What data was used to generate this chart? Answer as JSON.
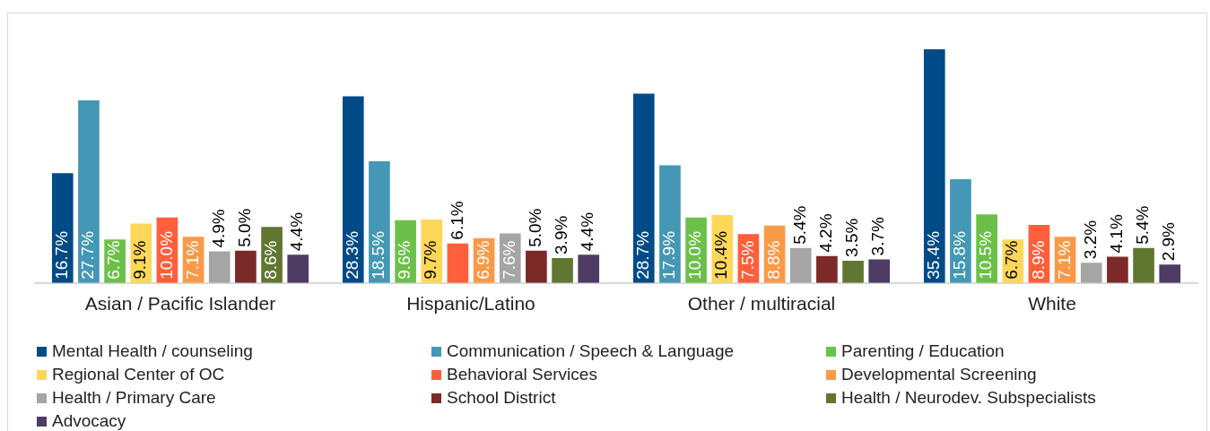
{
  "chart_data": {
    "type": "bar",
    "categories": [
      "Asian / Pacific Islander",
      "Hispanic/Latino",
      "Other / multiracial",
      "White"
    ],
    "series": [
      {
        "name": "Mental Health / counseling",
        "color": "#004b87",
        "values": [
          16.7,
          28.3,
          28.7,
          35.4
        ],
        "value_labels": [
          "16.7%",
          "28.3%",
          "28.7%",
          "35.4%"
        ]
      },
      {
        "name": "Communication / Speech & Language",
        "color": "#4497b5",
        "values": [
          27.7,
          18.5,
          17.9,
          15.8
        ],
        "value_labels": [
          "27.7%",
          "18.5%",
          "17.9%",
          "15.8%"
        ]
      },
      {
        "name": "Parenting / Education",
        "color": "#6cc04a",
        "values": [
          6.7,
          9.6,
          10.0,
          10.5
        ],
        "value_labels": [
          "6.7%",
          "9.6%",
          "10.0%",
          "10.5%"
        ]
      },
      {
        "name": "Regional Center of OC",
        "color": "#fdd757",
        "values": [
          9.1,
          9.7,
          10.4,
          6.7
        ],
        "value_labels": [
          "9.1%",
          "9.7%",
          "10.4%",
          "6.7%"
        ]
      },
      {
        "name": "Behavioral Services",
        "color": "#ff5f3a",
        "values": [
          10.0,
          6.1,
          7.5,
          8.9
        ],
        "value_labels": [
          "10.0%",
          "6.1%",
          "7.5%",
          "8.9%"
        ]
      },
      {
        "name": "Developmental Screening",
        "color": "#f99a48",
        "values": [
          7.1,
          6.9,
          8.8,
          7.1
        ],
        "value_labels": [
          "7.1%",
          "6.9%",
          "8.8%",
          "7.1%"
        ]
      },
      {
        "name": "Health / Primary Care",
        "color": "#a5a5a5",
        "values": [
          4.9,
          7.6,
          5.4,
          3.2
        ],
        "value_labels": [
          "4.9%",
          "7.6%",
          "5.4%",
          "3.2%"
        ]
      },
      {
        "name": "School District",
        "color": "#7b2a28",
        "values": [
          5.0,
          5.0,
          4.2,
          4.1
        ],
        "value_labels": [
          "5.0%",
          "5.0%",
          "4.2%",
          "4.1%"
        ]
      },
      {
        "name": "Health / Neurodev. Subspecialists",
        "color": "#607731",
        "values": [
          8.6,
          3.9,
          3.5,
          5.4
        ],
        "value_labels": [
          "8.6%",
          "3.9%",
          "3.5%",
          "5.4%"
        ]
      },
      {
        "name": "Advocacy",
        "color": "#4e3b63",
        "values": [
          4.4,
          4.4,
          3.7,
          2.9
        ],
        "value_labels": [
          "4.4%",
          "4.4%",
          "3.7%",
          "2.9%"
        ]
      }
    ],
    "grid": false,
    "legend": "bottom"
  }
}
